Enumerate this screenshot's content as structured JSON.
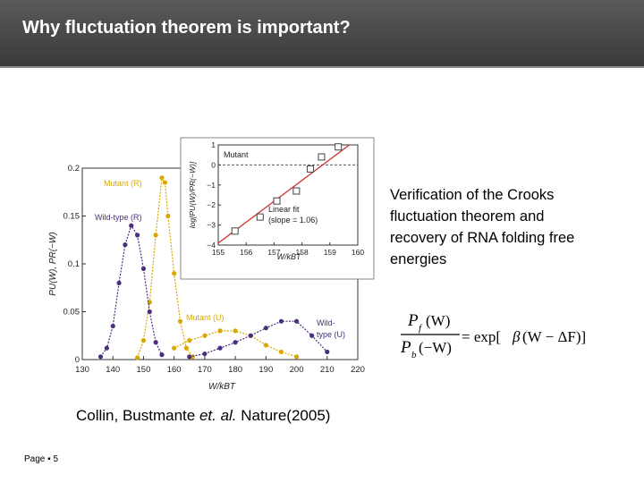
{
  "slide": {
    "title": "Why fluctuation theorem is important?",
    "description": "Verification of the Crooks fluctuation theorem and recovery of RNA folding free  energies",
    "citation_prefix": "Collin, Bustmante ",
    "citation_etal": "et. al.",
    "citation_suffix": " Nature(2005)",
    "page_label": "Page ",
    "page_bullet": "▪",
    "page_number": "5",
    "equation": {
      "numer_P": "P",
      "numer_sub": "f",
      "numer_arg": "(W)",
      "denom_P": "P",
      "denom_sub": "b",
      "denom_arg": "(−W)",
      "rhs_main": "= exp[",
      "beta": "β",
      "rhs_rest": "(W − ΔF)]"
    }
  },
  "chart_data": [
    {
      "type": "line",
      "xlabel": "W/kBT",
      "ylabel": "PU(W), PR(−W)",
      "xlim": [
        130,
        220
      ],
      "ylim": [
        0,
        0.2
      ],
      "xticks": [
        "130",
        "140",
        "150",
        "160",
        "170",
        "180",
        "190",
        "200",
        "210",
        "220"
      ],
      "yticks": [
        "0",
        "0.05",
        "0.1",
        "0.15",
        "0.2"
      ],
      "series": [
        {
          "name": "Mutant (R)",
          "color": "#d8a800",
          "x": [
            148,
            150,
            152,
            154,
            156,
            157,
            158,
            160,
            162,
            164,
            166
          ],
          "y": [
            0.002,
            0.02,
            0.06,
            0.13,
            0.19,
            0.185,
            0.15,
            0.09,
            0.04,
            0.012,
            0.003
          ]
        },
        {
          "name": "Wild-type (R)",
          "color": "#4a2f7f",
          "x": [
            136,
            138,
            140,
            142,
            144,
            146,
            148,
            150,
            152,
            154,
            156
          ],
          "y": [
            0.003,
            0.012,
            0.035,
            0.08,
            0.12,
            0.14,
            0.13,
            0.095,
            0.05,
            0.018,
            0.005
          ]
        },
        {
          "name": "Mutant (U)",
          "color": "#d8a800",
          "x": [
            160,
            165,
            170,
            175,
            180,
            185,
            190,
            195,
            200
          ],
          "y": [
            0.012,
            0.02,
            0.025,
            0.03,
            0.03,
            0.025,
            0.015,
            0.008,
            0.003
          ]
        },
        {
          "name": "Wild-type (U)",
          "color": "#4a2f7f",
          "x": [
            165,
            170,
            175,
            180,
            185,
            190,
            195,
            200,
            205,
            210
          ],
          "y": [
            0.003,
            0.006,
            0.012,
            0.018,
            0.025,
            0.033,
            0.04,
            0.04,
            0.025,
            0.008
          ]
        }
      ],
      "labels": [
        "Mutant (R)",
        "Wild-type (R)",
        "Mutant (U)",
        "Wild-",
        "type (U)"
      ]
    },
    {
      "type": "scatter",
      "xlabel": "W/kBT",
      "ylabel": "log[PU(W)/PR(−W)]",
      "xlim": [
        155,
        160
      ],
      "ylim": [
        -4,
        1
      ],
      "xticks": [
        "155",
        "156",
        "157",
        "158",
        "159",
        "160"
      ],
      "yticks": [
        "1",
        "0",
        "−1",
        "−2",
        "−3",
        "−4"
      ],
      "series": [
        {
          "name": "Mutant",
          "x": [
            155.6,
            156.5,
            157.1,
            157.8,
            158.3,
            158.7,
            159.3
          ],
          "y": [
            -3.3,
            -2.6,
            -1.8,
            -1.3,
            -0.2,
            0.4,
            0.9
          ]
        }
      ],
      "fit_label": "Linear fit",
      "fit_slope_label": "(slope = 1.06)"
    }
  ]
}
